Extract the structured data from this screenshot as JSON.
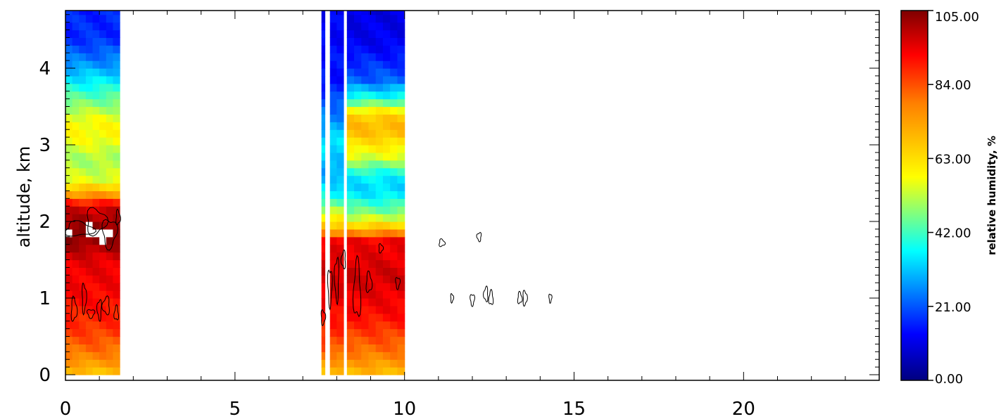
{
  "chart_data": {
    "type": "heatmap",
    "ylabel": "altitude, km",
    "xlim": [
      0,
      24
    ],
    "ylim": [
      0,
      4.8
    ],
    "x_ticks": [
      "0",
      "5",
      "10",
      "15",
      "20"
    ],
    "y_ticks": [
      "0",
      "1",
      "2",
      "3",
      "4"
    ],
    "colorbar": {
      "title": "relative humidity, %",
      "range": [
        0,
        105
      ],
      "ticks": [
        "0.00",
        "21.00",
        "42.00",
        "63.00",
        "84.00",
        "105.00"
      ],
      "colormap": "rainbow (dark blue to dark red)"
    },
    "data_columns": [
      {
        "x_start": 0.0,
        "x_end": 1.6,
        "profile": [
          [
            0.0,
            66
          ],
          [
            0.1,
            72
          ],
          [
            0.3,
            80
          ],
          [
            0.6,
            87
          ],
          [
            1.0,
            92
          ],
          [
            1.5,
            95
          ],
          [
            1.65,
            100
          ],
          [
            1.85,
            106
          ],
          [
            2.05,
            100
          ],
          [
            2.2,
            96
          ],
          [
            2.35,
            75
          ],
          [
            2.55,
            55
          ],
          [
            2.8,
            50
          ],
          [
            3.1,
            58
          ],
          [
            3.3,
            58
          ],
          [
            3.6,
            45
          ],
          [
            3.85,
            35
          ],
          [
            4.1,
            25
          ],
          [
            4.4,
            17
          ],
          [
            4.8,
            16
          ]
        ]
      },
      {
        "x_start": 7.55,
        "x_end": 7.65,
        "profile": [
          [
            0.0,
            66
          ],
          [
            0.3,
            82
          ],
          [
            0.8,
            92
          ],
          [
            1.3,
            97
          ],
          [
            1.75,
            93
          ],
          [
            1.9,
            70
          ],
          [
            2.3,
            40
          ],
          [
            2.6,
            28
          ],
          [
            3.0,
            35
          ],
          [
            3.4,
            25
          ],
          [
            3.8,
            15
          ],
          [
            4.8,
            12
          ]
        ]
      },
      {
        "x_start": 7.8,
        "x_end": 8.2,
        "profile": [
          [
            0.0,
            66
          ],
          [
            0.3,
            82
          ],
          [
            0.8,
            92
          ],
          [
            1.3,
            97
          ],
          [
            1.75,
            93
          ],
          [
            1.9,
            70
          ],
          [
            2.3,
            40
          ],
          [
            2.6,
            28
          ],
          [
            3.0,
            35
          ],
          [
            3.4,
            25
          ],
          [
            3.8,
            15
          ],
          [
            4.8,
            12
          ]
        ]
      },
      {
        "x_start": 8.3,
        "x_end": 10.0,
        "profile": [
          [
            0.0,
            68
          ],
          [
            0.3,
            80
          ],
          [
            0.8,
            92
          ],
          [
            1.3,
            97
          ],
          [
            1.75,
            93
          ],
          [
            1.9,
            70
          ],
          [
            2.1,
            48
          ],
          [
            2.4,
            33
          ],
          [
            2.6,
            36
          ],
          [
            2.85,
            55
          ],
          [
            3.2,
            70
          ],
          [
            3.4,
            65
          ],
          [
            3.6,
            40
          ],
          [
            3.85,
            22
          ],
          [
            4.3,
            12
          ],
          [
            4.8,
            10
          ]
        ]
      }
    ],
    "contour_level": 100
  }
}
